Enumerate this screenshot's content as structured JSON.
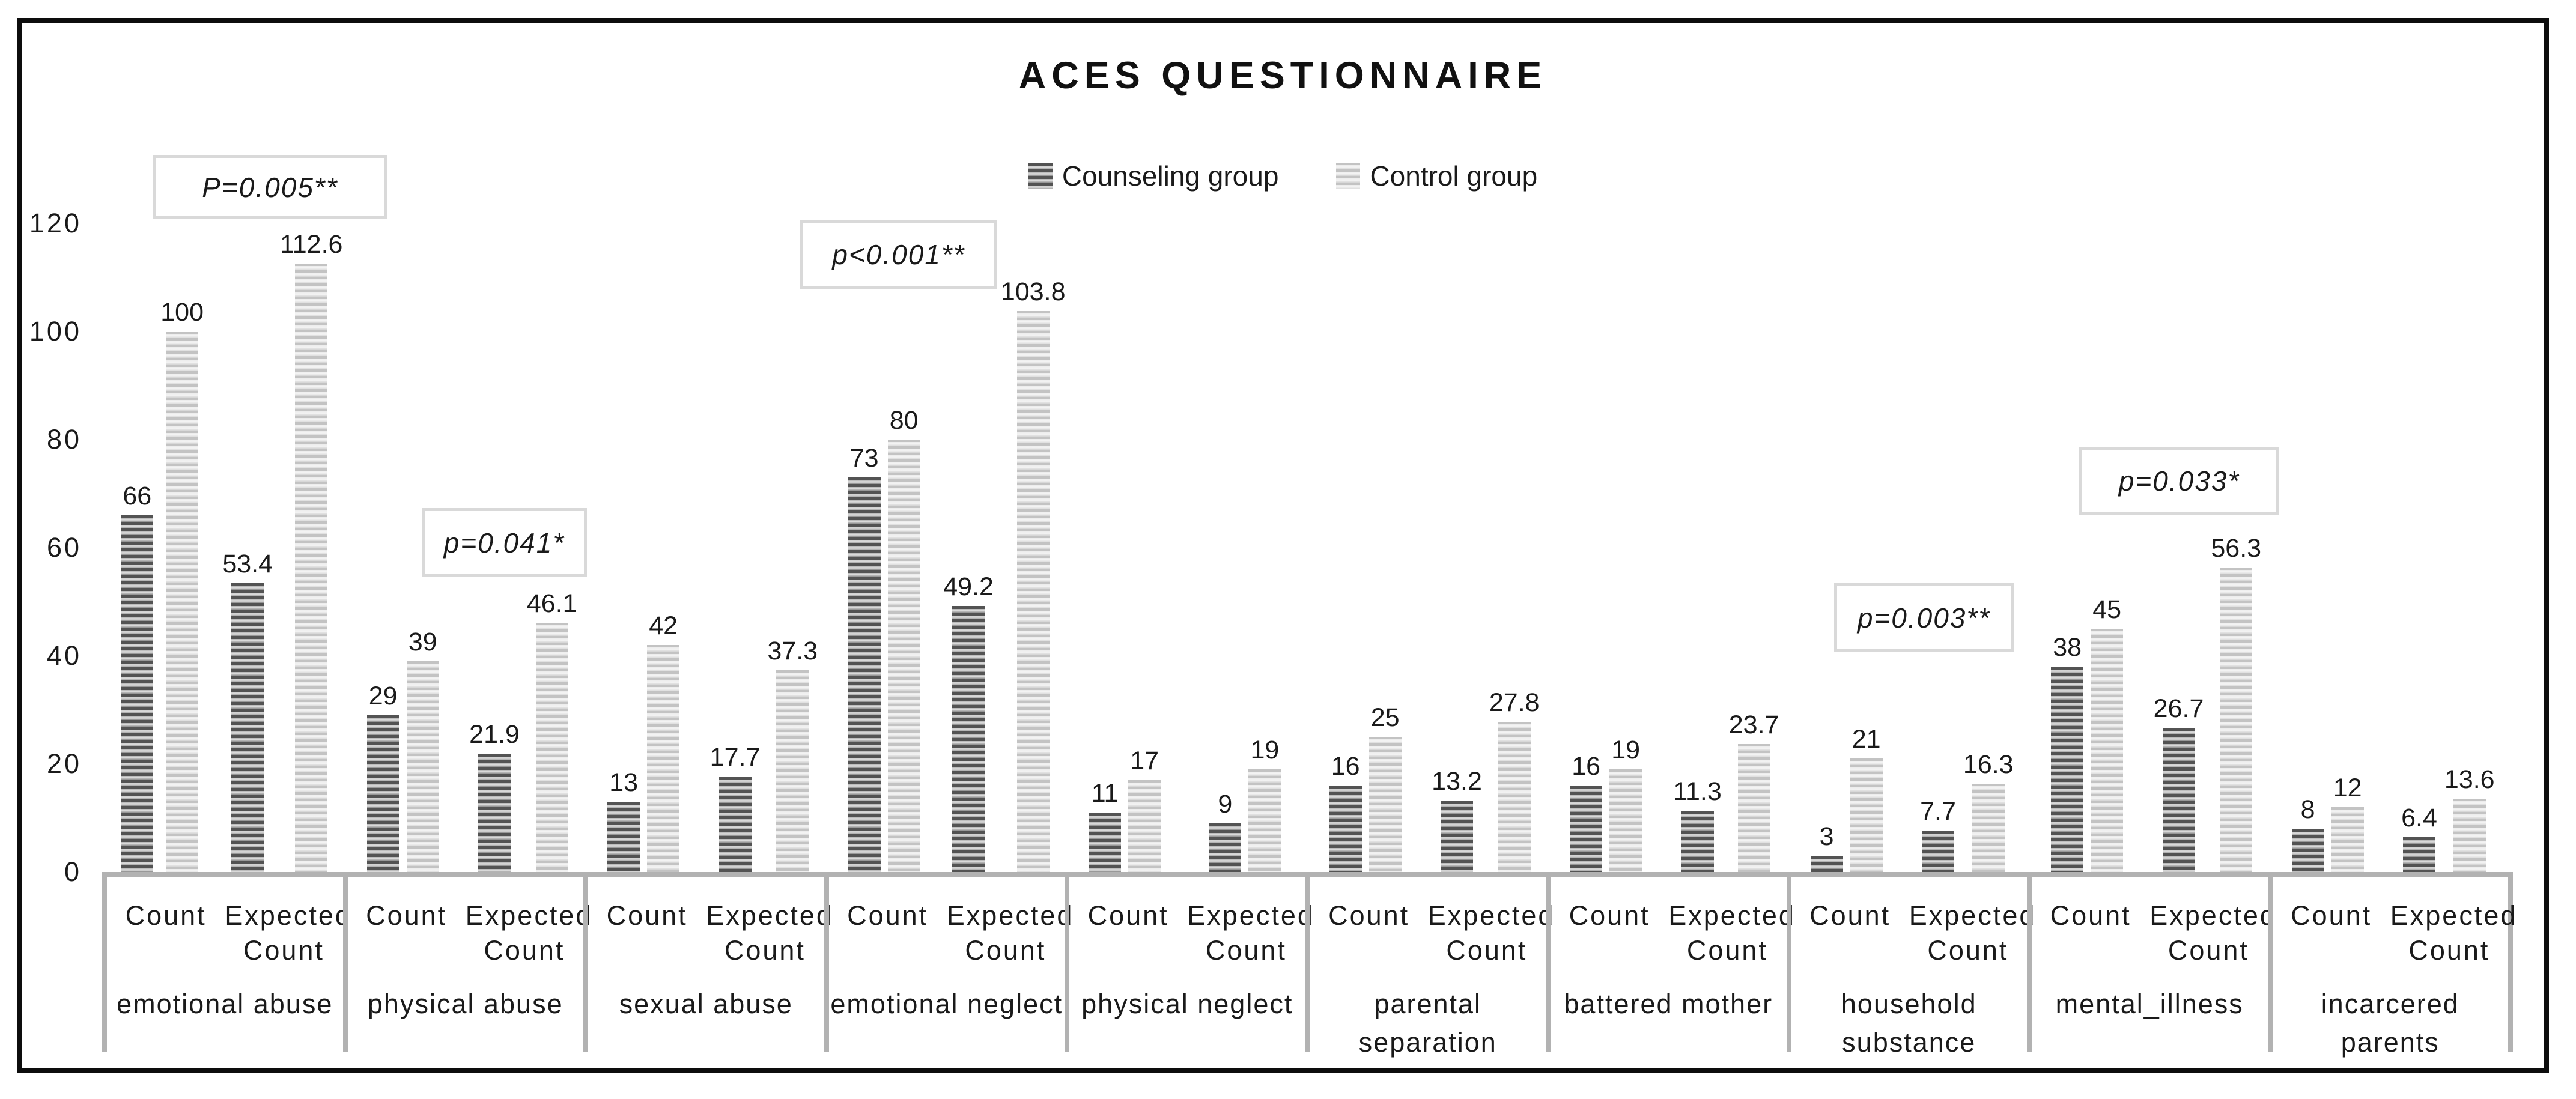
{
  "title": "ACES QUESTIONNAIRE",
  "legend": [
    {
      "name": "Counseling group",
      "swatch": "dark-horizontal-stripes",
      "color": "#6e6e6e"
    },
    {
      "name": "Control group",
      "swatch": "light-horizontal-stripes",
      "color": "#d9d9d9"
    }
  ],
  "y_axis": {
    "ticks": [
      0,
      20,
      40,
      60,
      80,
      100,
      120
    ],
    "min": 0,
    "max": 120
  },
  "sub_labels": [
    "Count",
    "Expected\nCount"
  ],
  "chart_data": {
    "type": "bar",
    "title": "ACES QUESTIONNAIRE",
    "categories": [
      "emotional abuse",
      "physical abuse",
      "sexual abuse",
      "emotional neglect",
      "physical neglect",
      "parental separation",
      "battered mother",
      "household\nsubstance",
      "mental_illness",
      "incarcered parents"
    ],
    "sub_categories": [
      "Count",
      "Expected Count"
    ],
    "series": [
      {
        "name": "Counseling group",
        "values": {
          "count": [
            66,
            29,
            13,
            73,
            11,
            16,
            16,
            3,
            38,
            8
          ],
          "expected": [
            53.4,
            21.9,
            17.7,
            49.2,
            9,
            13.2,
            11.3,
            7.7,
            26.7,
            6.4
          ]
        }
      },
      {
        "name": "Control group",
        "values": {
          "count": [
            100,
            39,
            42,
            80,
            17,
            25,
            19,
            21,
            45,
            12
          ],
          "expected": [
            112.6,
            46.1,
            37.3,
            103.8,
            19,
            27.8,
            23.7,
            16.3,
            56.3,
            13.6
          ]
        }
      }
    ],
    "ylim": [
      0,
      120
    ],
    "grid": false,
    "legend_position": "top-center",
    "annotations": [
      {
        "text": "P=0.005**",
        "category": "emotional abuse"
      },
      {
        "text": "p=0.041*",
        "category": "physical abuse"
      },
      {
        "text": "p<0.001**",
        "category": "emotional neglect"
      },
      {
        "text": "p=0.003**",
        "category": "household substance"
      },
      {
        "text": "p=0.033*",
        "category": "mental_illness"
      }
    ]
  }
}
